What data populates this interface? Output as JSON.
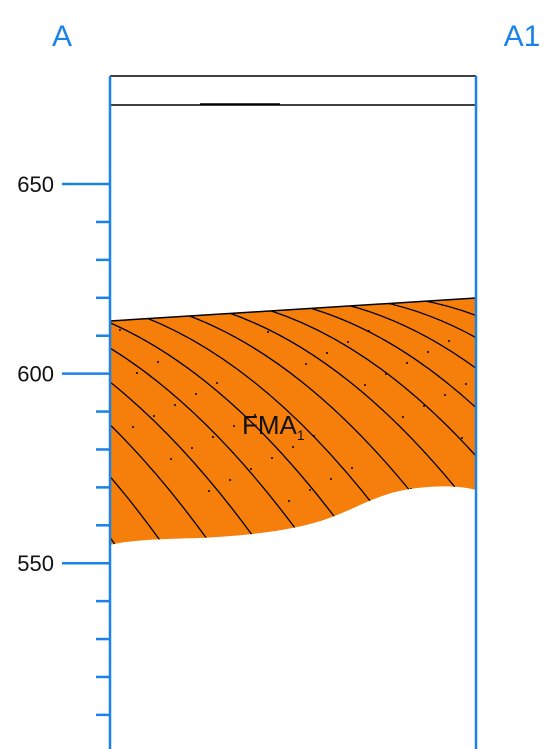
{
  "section": {
    "start_label": "A",
    "end_label": "A1"
  },
  "axis": {
    "ylim": [
      501,
      678.5
    ],
    "yticks": [
      650,
      600,
      550
    ],
    "minor_ticks": [
      640,
      630,
      620,
      610,
      590,
      580,
      570,
      560,
      540,
      530,
      520,
      510
    ]
  },
  "unit": {
    "label": "FMA",
    "subscript": "1"
  }
}
